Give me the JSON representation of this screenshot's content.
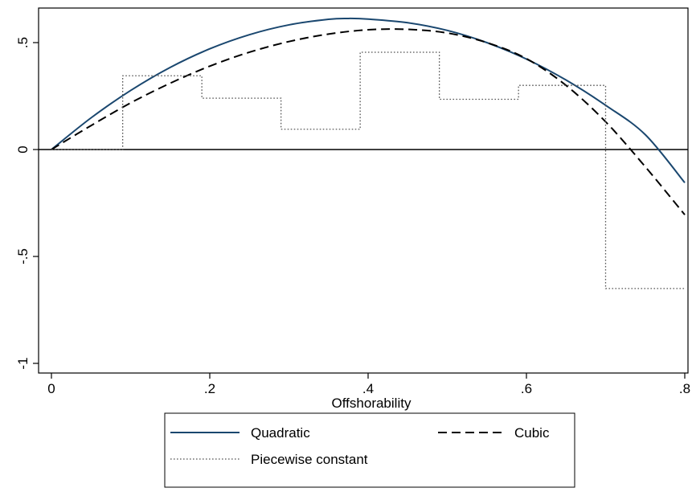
{
  "chart_data": {
    "type": "line",
    "title": "",
    "xlabel": "Offshorability",
    "ylabel": "",
    "xlim": [
      0,
      0.8
    ],
    "ylim": [
      -1,
      0.65
    ],
    "x_ticks": [
      {
        "value": 0,
        "label": "0"
      },
      {
        "value": 0.2,
        "label": ".2"
      },
      {
        "value": 0.4,
        "label": ".4"
      },
      {
        "value": 0.6,
        "label": ".6"
      },
      {
        "value": 0.8,
        "label": ".8"
      }
    ],
    "y_ticks": [
      {
        "value": -1,
        "label": "-1"
      },
      {
        "value": -0.5,
        "label": "-.5"
      },
      {
        "value": 0,
        "label": "0"
      },
      {
        "value": 0.5,
        "label": ".5"
      }
    ],
    "reference_line": {
      "y": 0
    },
    "grid": false,
    "legend": {
      "position": "bottom"
    },
    "series": [
      {
        "name": "Quadratic",
        "style": "solid",
        "color": "#1a476f",
        "x": [
          0,
          0.05,
          0.1,
          0.15,
          0.2,
          0.25,
          0.3,
          0.35,
          0.375,
          0.4,
          0.45,
          0.5,
          0.55,
          0.6,
          0.65,
          0.7,
          0.75,
          0.8
        ],
        "y": [
          0,
          0.148,
          0.276,
          0.384,
          0.471,
          0.537,
          0.583,
          0.609,
          0.613,
          0.61,
          0.593,
          0.557,
          0.5,
          0.423,
          0.325,
          0.207,
          0.07,
          -0.155
        ]
      },
      {
        "name": "Cubic",
        "style": "dashed",
        "color": "#000000",
        "x": [
          0,
          0.05,
          0.1,
          0.15,
          0.2,
          0.25,
          0.3,
          0.35,
          0.4,
          0.45,
          0.5,
          0.55,
          0.6,
          0.65,
          0.7,
          0.75,
          0.8
        ],
        "y": [
          0,
          0.112,
          0.218,
          0.31,
          0.39,
          0.455,
          0.505,
          0.54,
          0.56,
          0.562,
          0.545,
          0.5,
          0.425,
          0.3,
          0.13,
          -0.08,
          -0.305
        ]
      },
      {
        "name": "Piecewise constant",
        "style": "dotted",
        "color": "#555555",
        "steps": [
          {
            "x0": 0,
            "x1": 0.09,
            "y": 0
          },
          {
            "x0": 0.09,
            "x1": 0.19,
            "y": 0.345
          },
          {
            "x0": 0.19,
            "x1": 0.29,
            "y": 0.24
          },
          {
            "x0": 0.29,
            "x1": 0.39,
            "y": 0.095
          },
          {
            "x0": 0.39,
            "x1": 0.49,
            "y": 0.455
          },
          {
            "x0": 0.49,
            "x1": 0.59,
            "y": 0.235
          },
          {
            "x0": 0.59,
            "x1": 0.7,
            "y": 0.3
          },
          {
            "x0": 0.7,
            "x1": 0.8,
            "y": -0.65
          }
        ]
      }
    ]
  }
}
